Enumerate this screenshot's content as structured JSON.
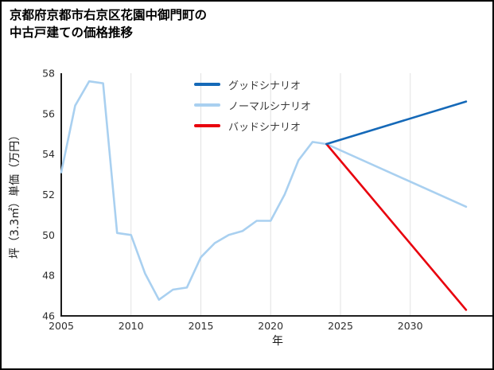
{
  "title": {
    "line1": "京都府京都市右京区花園中御門町の",
    "line2": "中古戸建ての価格推移"
  },
  "chart_data": {
    "type": "line",
    "title": "京都府京都市右京区花園中御門町の中古戸建ての価格推移",
    "xlabel": "年",
    "ylabel": "坪（3.3㎡）単価（万円）",
    "xlim": [
      2005,
      2036
    ],
    "ylim": [
      46,
      58
    ],
    "x_ticks": [
      2005,
      2010,
      2015,
      2020,
      2025,
      2030
    ],
    "y_ticks": [
      46,
      48,
      50,
      52,
      54,
      56,
      58
    ],
    "grid": "vertical",
    "legend_position": "top-center",
    "series": [
      {
        "name": "グッドシナリオ",
        "color": "#1569b8",
        "x": [
          2024,
          2034
        ],
        "values": [
          54.5,
          56.6
        ]
      },
      {
        "name": "ノーマルシナリオ",
        "color": "#a9d0f0",
        "x": [
          2005,
          2006,
          2007,
          2008,
          2009,
          2010,
          2011,
          2012,
          2013,
          2014,
          2015,
          2016,
          2017,
          2018,
          2019,
          2020,
          2021,
          2022,
          2023,
          2024,
          2034
        ],
        "values": [
          53.1,
          56.4,
          57.6,
          57.5,
          50.1,
          50.0,
          48.1,
          46.8,
          47.3,
          47.4,
          48.9,
          49.6,
          50.0,
          50.2,
          50.7,
          50.7,
          52.0,
          53.7,
          54.6,
          54.5,
          51.4
        ]
      },
      {
        "name": "バッドシナリオ",
        "color": "#e8000d",
        "x": [
          2024,
          2034
        ],
        "values": [
          54.5,
          46.3
        ]
      }
    ]
  }
}
